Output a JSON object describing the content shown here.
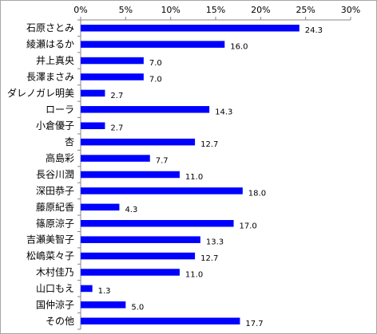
{
  "chart_data": {
    "type": "bar",
    "orientation": "horizontal",
    "categories": [
      "石原さとみ",
      "綾瀬はるか",
      "井上真央",
      "長澤まさみ",
      "ダレノガレ明美",
      "ローラ",
      "小倉優子",
      "杏",
      "高島彩",
      "長谷川潤",
      "深田恭子",
      "藤原紀香",
      "篠原涼子",
      "吉瀬美智子",
      "松嶋菜々子",
      "木村佳乃",
      "山口もえ",
      "国仲涼子",
      "その他"
    ],
    "values": [
      24.3,
      16.0,
      7.0,
      7.0,
      2.7,
      14.3,
      2.7,
      12.7,
      7.7,
      11.0,
      18.0,
      4.3,
      17.0,
      13.3,
      12.7,
      11.0,
      1.3,
      5.0,
      17.7
    ],
    "value_labels": [
      "24.3",
      "16.0",
      "7.0",
      "7.0",
      "2.7",
      "14.3",
      "2.7",
      "12.7",
      "7.7",
      "11.0",
      "18.0",
      "4.3",
      "17.0",
      "13.3",
      "12.7",
      "11.0",
      "1.3",
      "5.0",
      "17.7"
    ],
    "xlim": [
      0,
      30
    ],
    "ticks": [
      0,
      5,
      10,
      15,
      20,
      25,
      30
    ],
    "tick_labels": [
      "0%",
      "5%",
      "10%",
      "15%",
      "20%",
      "25%",
      "30%"
    ],
    "axis_position": "top",
    "grid": false,
    "bar_color": "#0000ff",
    "title": "",
    "xlabel": "",
    "ylabel": ""
  }
}
